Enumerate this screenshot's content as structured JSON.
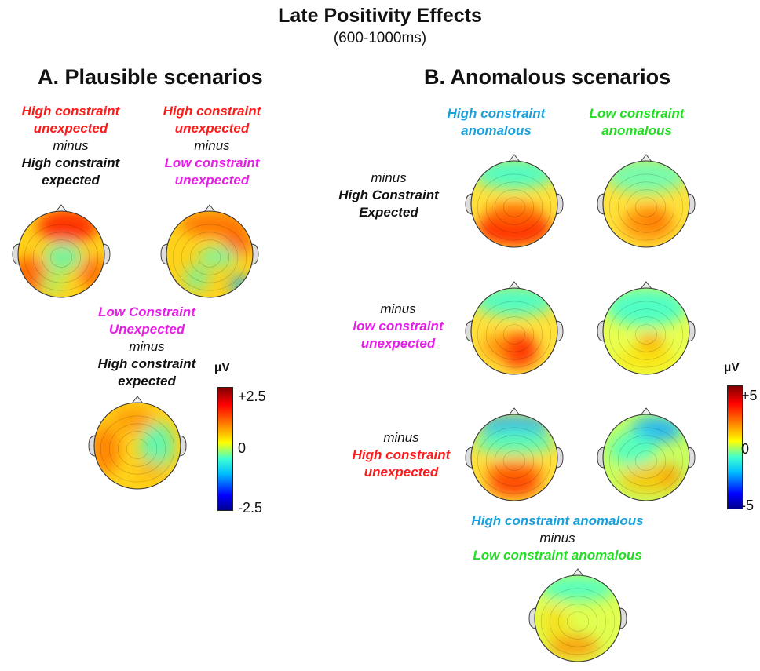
{
  "title": "Late Positivity Effects",
  "subtitle": "(600-1000ms)",
  "panel_a": {
    "heading": "A. Plausible scenarios",
    "label1": {
      "line1": "High constraint",
      "line2": "unexpected",
      "line3": "minus",
      "line4": "High constraint",
      "line5": "expected"
    },
    "label2": {
      "line1": "High constraint",
      "line2": "unexpected",
      "line3": "minus",
      "line4": "Low constraint",
      "line5": "unexpected"
    },
    "label3": {
      "line1": "Low Constraint",
      "line2": "Unexpected",
      "line3": "minus",
      "line4": "High constraint",
      "line5": "expected"
    },
    "colorbar": {
      "unit": "µV",
      "max": "+2.5",
      "mid": "0",
      "min": "-2.5"
    }
  },
  "panel_b": {
    "heading": "B. Anomalous scenarios",
    "col1": {
      "line1": "High constraint",
      "line2": "anomalous"
    },
    "col2": {
      "line1": "Low constraint",
      "line2": "anomalous"
    },
    "row1": {
      "line1": "minus",
      "line2": "High Constraint",
      "line3": "Expected"
    },
    "row2": {
      "line1": "minus",
      "line2": "low constraint",
      "line3": "unexpected"
    },
    "row3": {
      "line1": "minus",
      "line2": "High constraint",
      "line3": "unexpected"
    },
    "bottom": {
      "line1": "High constraint anomalous",
      "line2": "minus",
      "line3": "Low constraint anomalous"
    },
    "colorbar": {
      "unit": "µV",
      "max": "+5",
      "mid": "0",
      "min": "-5"
    }
  },
  "colors": {
    "red": "#ff1a1a",
    "magenta": "#e61ee6",
    "blue": "#1aa0dc",
    "green": "#22dd22",
    "black": "#111111"
  },
  "colormap": [
    "#00008f",
    "#0000ff",
    "#00bfff",
    "#40ffd0",
    "#ffff00",
    "#ff8000",
    "#ff0000",
    "#800000"
  ],
  "maps": [
    {
      "id": "a1",
      "base": "#ffd21a",
      "blobs": [
        [
          "#ff2a00",
          0.15,
          -0.65,
          0.7,
          0.4,
          0.95
        ],
        [
          "#ff5a00",
          -0.75,
          0.5,
          0.45,
          0.45,
          0.85
        ],
        [
          "#ff6400",
          0.75,
          0.45,
          0.35,
          0.4,
          0.8
        ],
        [
          "#40ffd0",
          0.05,
          0.05,
          0.45,
          0.35,
          0.7
        ],
        [
          "#90ff80",
          -0.2,
          0.65,
          0.3,
          0.3,
          0.6
        ]
      ]
    },
    {
      "id": "a2",
      "base": "#ffd21a",
      "blobs": [
        [
          "#ff6a00",
          0.1,
          -0.7,
          0.8,
          0.3,
          0.85
        ],
        [
          "#ff5000",
          0.65,
          -0.25,
          0.35,
          0.3,
          0.8
        ],
        [
          "#60ffc0",
          0.2,
          0.05,
          0.45,
          0.25,
          0.75
        ],
        [
          "#1ab0ff",
          0.72,
          0.72,
          0.25,
          0.22,
          0.85
        ],
        [
          "#40ffd0",
          -0.3,
          0.55,
          0.3,
          0.3,
          0.6
        ]
      ]
    },
    {
      "id": "a3",
      "base": "#ffd21a",
      "blobs": [
        [
          "#ff7a00",
          -0.75,
          0.1,
          0.35,
          0.55,
          0.85
        ],
        [
          "#40ffd0",
          0.45,
          0.0,
          0.4,
          0.55,
          0.8
        ],
        [
          "#ff8c00",
          -0.1,
          -0.6,
          0.5,
          0.3,
          0.7
        ],
        [
          "#ffaa00",
          0.3,
          0.55,
          0.35,
          0.25,
          0.6
        ]
      ]
    },
    {
      "id": "b11",
      "base": "#ffe13a",
      "blobs": [
        [
          "#40ffd0",
          0.0,
          -0.7,
          0.95,
          0.35,
          0.9
        ],
        [
          "#ff2000",
          0.0,
          0.55,
          0.85,
          0.4,
          1.0
        ],
        [
          "#ff6a00",
          0.0,
          0.25,
          0.7,
          0.3,
          0.8
        ]
      ]
    },
    {
      "id": "b12",
      "base": "#ffe13a",
      "blobs": [
        [
          "#60ffc0",
          0.0,
          -0.65,
          0.95,
          0.4,
          0.85
        ],
        [
          "#ff8000",
          0.05,
          0.45,
          0.6,
          0.4,
          0.8
        ],
        [
          "#ff7000",
          0.2,
          0.35,
          0.25,
          0.25,
          0.7
        ]
      ]
    },
    {
      "id": "b21",
      "base": "#ffe13a",
      "blobs": [
        [
          "#40ffd0",
          0.0,
          -0.7,
          0.95,
          0.35,
          0.9
        ],
        [
          "#ff3000",
          0.1,
          0.45,
          0.45,
          0.4,
          0.95
        ],
        [
          "#ff8000",
          -0.4,
          0.35,
          0.35,
          0.3,
          0.7
        ]
      ]
    },
    {
      "id": "b22",
      "base": "#e8ff50",
      "blobs": [
        [
          "#40ffd0",
          0.0,
          -0.55,
          0.95,
          0.45,
          0.9
        ],
        [
          "#ff9000",
          0.1,
          0.3,
          0.3,
          0.25,
          0.8
        ],
        [
          "#ffe000",
          0.0,
          0.65,
          0.7,
          0.3,
          0.7
        ]
      ]
    },
    {
      "id": "b31",
      "base": "#ffe13a",
      "blobs": [
        [
          "#1ab0ff",
          0.0,
          -0.75,
          0.85,
          0.25,
          0.85
        ],
        [
          "#40ffd0",
          0.0,
          -0.35,
          0.95,
          0.3,
          0.8
        ],
        [
          "#ff3000",
          0.0,
          0.55,
          0.6,
          0.35,
          0.95
        ],
        [
          "#ff7000",
          0.0,
          0.3,
          0.7,
          0.25,
          0.7
        ]
      ]
    },
    {
      "id": "b32",
      "base": "#c8ff60",
      "blobs": [
        [
          "#1ab0ff",
          0.25,
          -0.65,
          0.6,
          0.3,
          0.9
        ],
        [
          "#40ffd0",
          -0.3,
          -0.2,
          0.55,
          0.4,
          0.8
        ],
        [
          "#ffc000",
          0.1,
          0.5,
          0.7,
          0.35,
          0.8
        ],
        [
          "#ff9000",
          0.55,
          0.4,
          0.25,
          0.25,
          0.7
        ]
      ]
    },
    {
      "id": "b4",
      "base": "#e0ff50",
      "blobs": [
        [
          "#40ffd0",
          0.0,
          -0.7,
          0.9,
          0.3,
          0.85
        ],
        [
          "#ff9000",
          -0.1,
          0.65,
          0.6,
          0.25,
          0.85
        ],
        [
          "#ffd000",
          -0.55,
          0.1,
          0.35,
          0.4,
          0.6
        ]
      ]
    }
  ]
}
